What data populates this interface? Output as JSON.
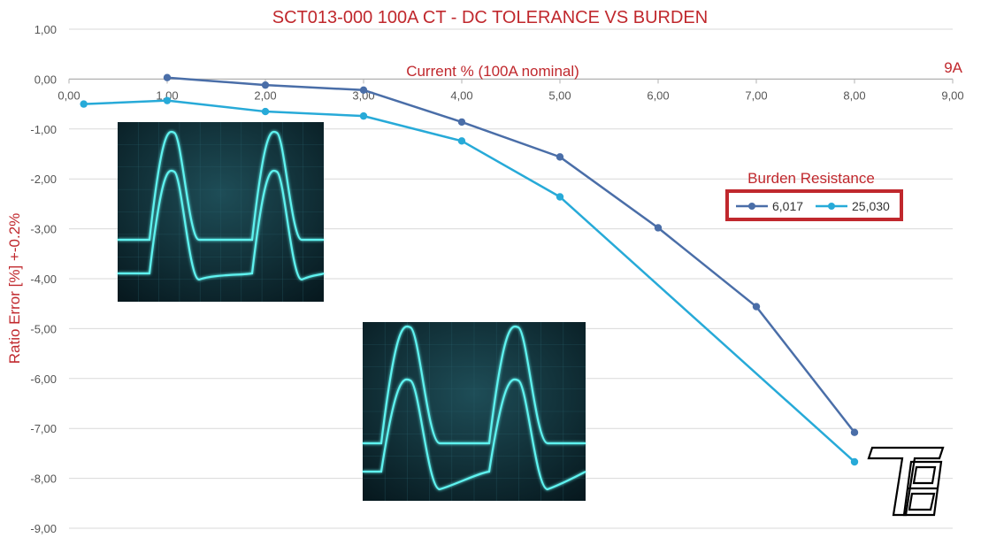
{
  "chart_data": {
    "type": "line",
    "title": "SCT013-000 100A CT - DC TOLERANCE VS BURDEN",
    "xlabel": "Current % (100A nominal)",
    "ylabel": "Ratio Error [%]  +-0.2%",
    "corner_label": "9A",
    "xlim": [
      0,
      9
    ],
    "ylim": [
      -9,
      1
    ],
    "x_ticks": [
      "0,00",
      "1,00",
      "2,00",
      "3,00",
      "4,00",
      "5,00",
      "6,00",
      "7,00",
      "8,00",
      "9,00"
    ],
    "y_ticks": [
      "1,00",
      "0,00",
      "-1,00",
      "-2,00",
      "-3,00",
      "-4,00",
      "-5,00",
      "-6,00",
      "-7,00",
      "-8,00",
      "-9,00"
    ],
    "grid": "horizontal",
    "legend_title": "Burden Resistance",
    "legend_placement": "right",
    "series": [
      {
        "name": "6,017",
        "color": "#4a6ea8",
        "points": [
          [
            1.0,
            0.03
          ],
          [
            2.0,
            -0.12
          ],
          [
            3.0,
            -0.22
          ],
          [
            4.0,
            -0.86
          ],
          [
            5.0,
            -1.56
          ],
          [
            6.0,
            -2.98
          ],
          [
            7.0,
            -4.56
          ],
          [
            8.0,
            -7.08
          ]
        ]
      },
      {
        "name": "25,030",
        "color": "#27aad8",
        "points": [
          [
            0.15,
            -0.5
          ],
          [
            1.0,
            -0.43
          ],
          [
            2.0,
            -0.65
          ],
          [
            3.0,
            -0.74
          ],
          [
            4.0,
            -1.24
          ],
          [
            5.0,
            -2.36
          ],
          [
            8.0,
            -7.67
          ]
        ]
      }
    ]
  },
  "colors": {
    "title": "#c0282d",
    "axis_label": "#c0282d",
    "legend_box": "#c0282d",
    "gridline": "#d9d9d9",
    "scope_bg": "#0b2a33",
    "scope_trace": "#5ff3f0"
  },
  "insets": [
    {
      "name": "scope-trace-inset-1",
      "icon": "oscilloscope-waveform"
    },
    {
      "name": "scope-trace-inset-2",
      "icon": "oscilloscope-waveform"
    }
  ],
  "logo": {
    "icon": "tb-monogram-logo"
  }
}
